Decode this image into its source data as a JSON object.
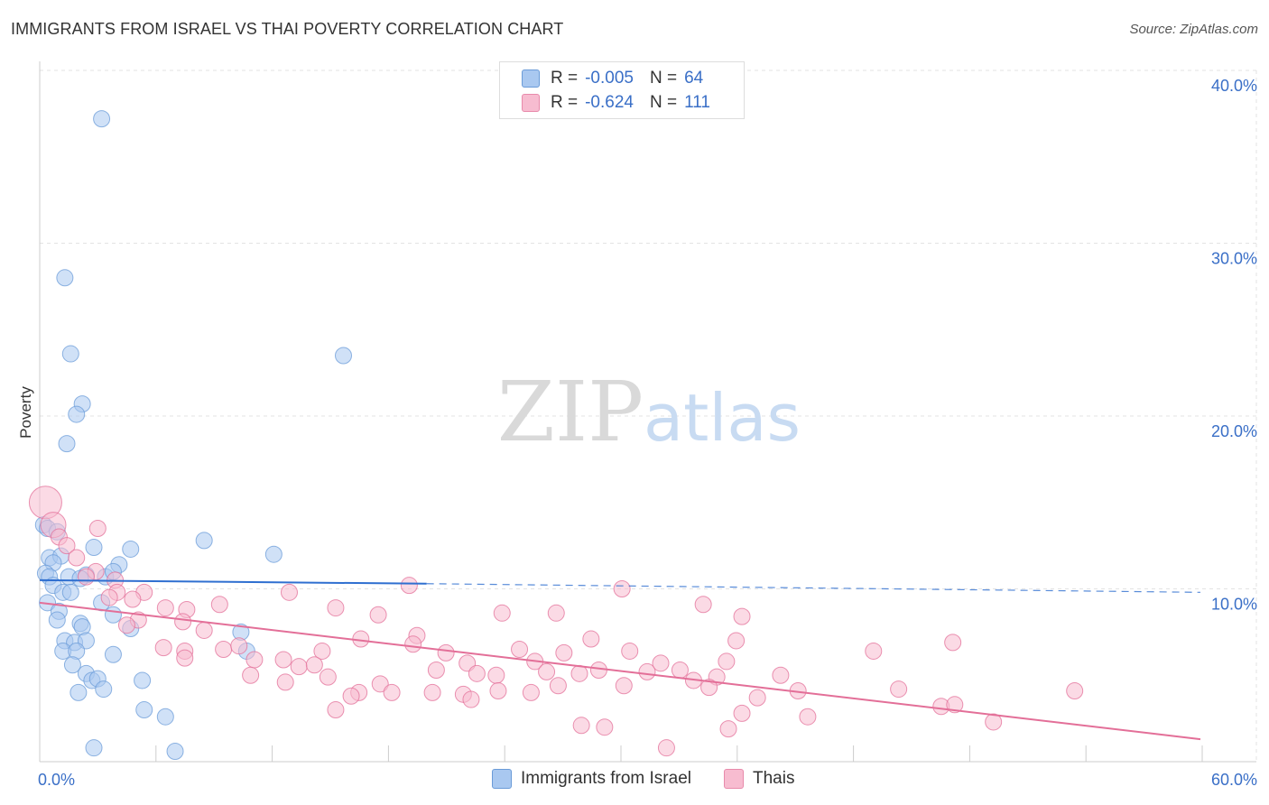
{
  "title": "IMMIGRANTS FROM ISRAEL VS THAI POVERTY CORRELATION CHART",
  "source": "Source: ZipAtlas.com",
  "watermark": {
    "part1": "ZIP",
    "part2": "atlas"
  },
  "legend": {
    "rows": [
      {
        "r_label": "R =",
        "r_value": "-0.005",
        "n_label": "N =",
        "n_value": "64",
        "color": "#a9c8f0",
        "border": "#6a9bd8"
      },
      {
        "r_label": "R =",
        "r_value": "-0.624",
        "n_label": "N =",
        "n_value": "111",
        "color": "#f7bcd0",
        "border": "#e88aab"
      }
    ]
  },
  "bottom_legend": [
    {
      "label": "Immigrants from Israel",
      "color": "#a9c8f0",
      "border": "#6a9bd8"
    },
    {
      "label": "Thais",
      "color": "#f7bcd0",
      "border": "#e88aab"
    }
  ],
  "chart_data": {
    "type": "scatter",
    "xlabel": "",
    "ylabel": "Poverty",
    "xlim": [
      0,
      60
    ],
    "ylim": [
      0,
      42
    ],
    "x_tick_labels": [
      "0.0%",
      "60.0%"
    ],
    "y_ticks": [
      10,
      20,
      30,
      40
    ],
    "y_tick_labels": [
      "10.0%",
      "20.0%",
      "30.0%",
      "40.0%"
    ],
    "grid": true,
    "series": [
      {
        "name": "Immigrants from Israel",
        "color": "#6a9bd8",
        "fill": "#a9c8f0",
        "trend": {
          "x0": 0,
          "y0": 10.5,
          "x1": 20,
          "y1": 10.3,
          "dash_to": 60,
          "dash_y": 9.8
        },
        "points": [
          [
            3.2,
            37.2
          ],
          [
            1.3,
            28.0
          ],
          [
            1.6,
            23.6
          ],
          [
            15.7,
            23.5
          ],
          [
            2.2,
            20.7
          ],
          [
            1.9,
            20.1
          ],
          [
            1.4,
            18.4
          ],
          [
            0.2,
            13.7
          ],
          [
            0.4,
            13.5
          ],
          [
            0.9,
            13.3
          ],
          [
            8.5,
            12.8
          ],
          [
            12.1,
            12.0
          ],
          [
            2.8,
            12.4
          ],
          [
            4.7,
            12.3
          ],
          [
            0.5,
            11.8
          ],
          [
            1.1,
            11.9
          ],
          [
            4.1,
            11.4
          ],
          [
            0.7,
            11.5
          ],
          [
            0.3,
            10.9
          ],
          [
            0.5,
            10.7
          ],
          [
            1.5,
            10.7
          ],
          [
            2.4,
            10.8
          ],
          [
            3.4,
            10.7
          ],
          [
            3.8,
            11.0
          ],
          [
            0.7,
            10.2
          ],
          [
            1.2,
            9.8
          ],
          [
            1.6,
            9.8
          ],
          [
            2.1,
            10.6
          ],
          [
            0.4,
            9.2
          ],
          [
            1.0,
            8.7
          ],
          [
            3.2,
            9.2
          ],
          [
            3.8,
            8.5
          ],
          [
            0.9,
            8.2
          ],
          [
            2.1,
            8.0
          ],
          [
            2.2,
            7.8
          ],
          [
            4.7,
            7.7
          ],
          [
            1.3,
            7.0
          ],
          [
            1.8,
            6.9
          ],
          [
            2.4,
            7.0
          ],
          [
            1.2,
            6.4
          ],
          [
            1.9,
            6.4
          ],
          [
            3.8,
            6.2
          ],
          [
            10.4,
            7.5
          ],
          [
            10.7,
            6.4
          ],
          [
            1.7,
            5.6
          ],
          [
            2.4,
            5.1
          ],
          [
            2.7,
            4.7
          ],
          [
            3.0,
            4.8
          ],
          [
            5.3,
            4.7
          ],
          [
            3.3,
            4.2
          ],
          [
            2.0,
            4.0
          ],
          [
            5.4,
            3.0
          ],
          [
            6.5,
            2.6
          ],
          [
            2.8,
            0.8
          ],
          [
            7.0,
            0.6
          ]
        ]
      },
      {
        "name": "Thais",
        "color": "#e36f98",
        "fill": "#f7bcd0",
        "trend": {
          "x0": 0,
          "y0": 9.2,
          "x1": 60,
          "y1": 1.3
        },
        "points": [
          [
            0.3,
            15.0
          ],
          [
            0.7,
            13.7
          ],
          [
            3.0,
            13.5
          ],
          [
            1.0,
            13.0
          ],
          [
            1.4,
            12.5
          ],
          [
            1.9,
            11.8
          ],
          [
            2.9,
            11.0
          ],
          [
            2.4,
            10.7
          ],
          [
            3.9,
            10.5
          ],
          [
            19.1,
            10.2
          ],
          [
            30.1,
            10.0
          ],
          [
            4.0,
            9.8
          ],
          [
            5.4,
            9.8
          ],
          [
            12.9,
            9.8
          ],
          [
            3.6,
            9.5
          ],
          [
            4.8,
            9.4
          ],
          [
            9.3,
            9.1
          ],
          [
            34.3,
            9.1
          ],
          [
            15.3,
            8.9
          ],
          [
            6.5,
            8.9
          ],
          [
            7.6,
            8.8
          ],
          [
            17.5,
            8.5
          ],
          [
            23.9,
            8.6
          ],
          [
            26.7,
            8.6
          ],
          [
            36.3,
            8.4
          ],
          [
            5.1,
            8.2
          ],
          [
            7.4,
            8.1
          ],
          [
            4.5,
            7.9
          ],
          [
            8.5,
            7.6
          ],
          [
            16.6,
            7.1
          ],
          [
            19.5,
            7.3
          ],
          [
            28.5,
            7.1
          ],
          [
            36.0,
            7.0
          ],
          [
            47.2,
            6.9
          ],
          [
            6.4,
            6.6
          ],
          [
            7.5,
            6.4
          ],
          [
            9.5,
            6.5
          ],
          [
            10.3,
            6.7
          ],
          [
            14.6,
            6.4
          ],
          [
            19.3,
            6.8
          ],
          [
            21.0,
            6.3
          ],
          [
            24.8,
            6.5
          ],
          [
            27.1,
            6.3
          ],
          [
            30.5,
            6.4
          ],
          [
            43.1,
            6.4
          ],
          [
            7.5,
            6.0
          ],
          [
            11.1,
            5.9
          ],
          [
            12.6,
            5.9
          ],
          [
            22.1,
            5.7
          ],
          [
            25.6,
            5.8
          ],
          [
            35.5,
            5.8
          ],
          [
            32.1,
            5.7
          ],
          [
            13.4,
            5.5
          ],
          [
            14.2,
            5.6
          ],
          [
            20.5,
            5.3
          ],
          [
            26.2,
            5.2
          ],
          [
            28.9,
            5.3
          ],
          [
            31.4,
            5.2
          ],
          [
            33.1,
            5.3
          ],
          [
            10.9,
            5.0
          ],
          [
            14.9,
            4.9
          ],
          [
            22.6,
            5.1
          ],
          [
            23.6,
            5.0
          ],
          [
            27.9,
            5.1
          ],
          [
            35.0,
            4.9
          ],
          [
            38.3,
            5.0
          ],
          [
            33.8,
            4.7
          ],
          [
            12.7,
            4.6
          ],
          [
            17.6,
            4.5
          ],
          [
            30.2,
            4.4
          ],
          [
            26.8,
            4.4
          ],
          [
            34.6,
            4.3
          ],
          [
            39.2,
            4.1
          ],
          [
            44.4,
            4.2
          ],
          [
            53.5,
            4.1
          ],
          [
            16.5,
            4.0
          ],
          [
            18.2,
            4.0
          ],
          [
            20.3,
            4.0
          ],
          [
            21.9,
            3.9
          ],
          [
            23.7,
            4.1
          ],
          [
            25.4,
            4.0
          ],
          [
            16.1,
            3.8
          ],
          [
            22.3,
            3.6
          ],
          [
            37.1,
            3.7
          ],
          [
            46.6,
            3.2
          ],
          [
            47.3,
            3.3
          ],
          [
            15.3,
            3.0
          ],
          [
            39.7,
            2.6
          ],
          [
            28.0,
            2.1
          ],
          [
            35.6,
            1.9
          ],
          [
            29.2,
            2.0
          ],
          [
            36.3,
            2.8
          ],
          [
            49.3,
            2.3
          ],
          [
            32.4,
            0.8
          ]
        ]
      }
    ]
  }
}
